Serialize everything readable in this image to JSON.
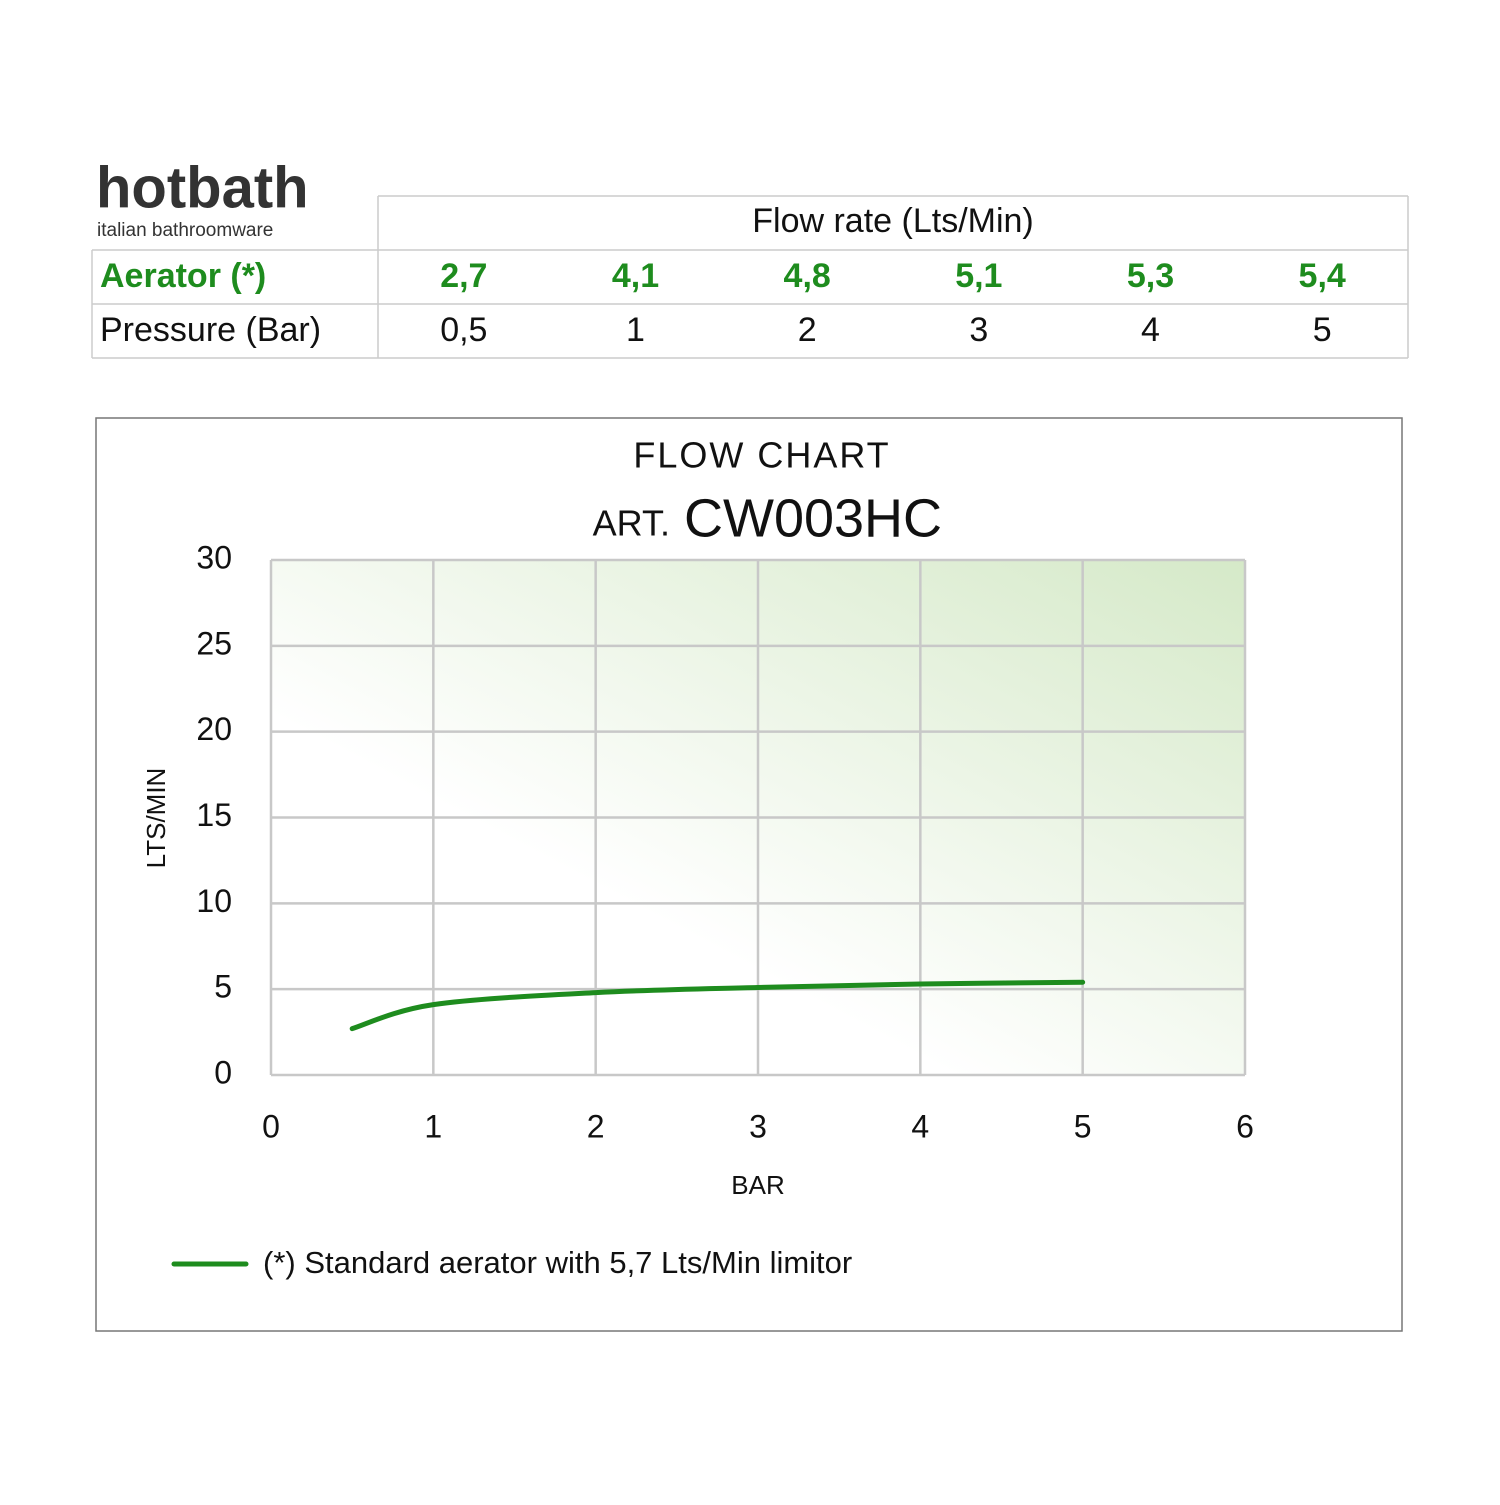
{
  "logo": {
    "name": "hotbath",
    "tagline": "italian bathroomware"
  },
  "table": {
    "header": "Flow rate (Lts/Min)",
    "rows": [
      [
        "Aerator (*)",
        "2,7",
        "4,1",
        "4,8",
        "5,1",
        "5,3",
        "5,4"
      ],
      [
        "Pressure (Bar)",
        "0,5",
        "1",
        "2",
        "3",
        "4",
        "5"
      ]
    ]
  },
  "chart_data": {
    "type": "line",
    "title": "FLOW CHART",
    "subtitle_prefix": "ART.",
    "subtitle": "CW003HC",
    "x": [
      0.5,
      1,
      2,
      3,
      4,
      5
    ],
    "series": [
      {
        "name": "(*) Standard aerator with 5,7 Lts/Min limitor",
        "color": "#1e8c1e",
        "values": [
          2.7,
          4.1,
          4.8,
          5.1,
          5.3,
          5.4
        ]
      }
    ],
    "xlim": [
      0,
      6
    ],
    "xticks": [
      0,
      1,
      2,
      3,
      4,
      5,
      6
    ],
    "ylim": [
      0,
      30
    ],
    "yticks": [
      0,
      5,
      10,
      15,
      20,
      25,
      30
    ],
    "xlabel": "BAR",
    "ylabel": "LTS/MIN",
    "grid": true
  }
}
